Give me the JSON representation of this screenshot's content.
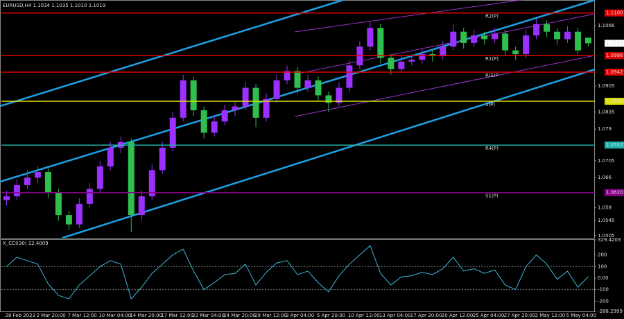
{
  "chart_data": [
    {
      "type": "candlestick",
      "title": "EURUSD,H4  1.1034 1.1035 1.1010 1.1019",
      "categories": [
        "28 Feb 2023",
        null,
        null,
        "2 Mar 20:00",
        null,
        null,
        "7 Mar 12:00",
        null,
        null,
        "10 Mar 04:00",
        null,
        null,
        "14 Mar 20:00",
        null,
        null,
        "17 Mar 12:00",
        null,
        null,
        "22 Mar 04:00",
        null,
        null,
        "24 Mar 20:00",
        null,
        null,
        "29 Mar 12:00",
        null,
        null,
        "3 Apr 04:00",
        null,
        null,
        "5 Apr 20:00",
        null,
        null,
        "10 Apr 12:00",
        null,
        null,
        "13 Apr 04:00",
        null,
        null,
        "17 Apr 20:00",
        null,
        null,
        "20 Apr 12:00",
        null,
        null,
        "25 Apr 04:00",
        null,
        null,
        "27 Apr 20:00",
        null,
        null,
        "2 May 12:00",
        null,
        null,
        "5 May 04:00",
        null,
        null
      ],
      "open": [
        1.06,
        1.061,
        1.064,
        1.066,
        1.0675,
        1.062,
        1.056,
        1.0535,
        1.059,
        1.063,
        1.069,
        1.074,
        1.0755,
        1.056,
        1.061,
        1.068,
        1.074,
        1.082,
        1.092,
        1.084,
        1.078,
        1.081,
        1.084,
        1.085,
        1.09,
        1.082,
        1.087,
        1.092,
        1.0945,
        1.09,
        1.092,
        1.088,
        1.086,
        1.09,
        1.096,
        1.101,
        1.106,
        1.098,
        1.095,
        1.097,
        1.0975,
        1.099,
        1.0985,
        1.101,
        1.105,
        1.102,
        1.104,
        1.103,
        1.1045,
        1.1,
        1.099,
        1.104,
        1.107,
        1.105,
        1.103,
        1.105,
        1.1034
      ],
      "high": [
        1.0625,
        1.0655,
        1.068,
        1.069,
        1.0685,
        1.063,
        1.057,
        1.0605,
        1.0645,
        1.0705,
        1.0755,
        1.077,
        1.0765,
        1.0625,
        1.0695,
        1.0755,
        1.0835,
        1.0935,
        1.093,
        1.085,
        1.0825,
        1.0855,
        1.0865,
        1.0915,
        1.091,
        1.0885,
        1.0935,
        1.096,
        1.0955,
        1.0935,
        1.093,
        1.089,
        1.0915,
        1.0975,
        1.1025,
        1.1075,
        1.107,
        1.099,
        1.0985,
        1.099,
        1.1005,
        1.1,
        1.1025,
        1.107,
        1.106,
        1.1055,
        1.105,
        1.106,
        1.1055,
        1.101,
        1.1055,
        1.1085,
        1.108,
        1.106,
        1.1065,
        1.106,
        1.1035
      ],
      "low": [
        1.0585,
        1.06,
        1.063,
        1.0645,
        1.0605,
        1.0545,
        1.052,
        1.0525,
        1.058,
        1.062,
        1.068,
        1.0725,
        1.0515,
        1.0545,
        1.06,
        1.067,
        1.073,
        1.081,
        1.0825,
        1.0765,
        1.077,
        1.08,
        1.0825,
        1.084,
        1.0795,
        1.081,
        1.086,
        1.091,
        1.0885,
        1.089,
        1.0865,
        1.0835,
        1.085,
        1.089,
        1.095,
        1.1,
        1.0965,
        1.0935,
        1.094,
        1.096,
        1.0965,
        1.097,
        1.0975,
        1.1,
        1.1005,
        1.101,
        1.1015,
        1.102,
        1.0985,
        1.0975,
        1.098,
        1.103,
        1.1035,
        1.1015,
        1.102,
        1.099,
        1.101
      ],
      "close": [
        1.061,
        1.064,
        1.066,
        1.0675,
        1.062,
        1.056,
        1.0535,
        1.059,
        1.063,
        1.069,
        1.074,
        1.0755,
        1.056,
        1.061,
        1.068,
        1.074,
        1.082,
        1.092,
        1.084,
        1.078,
        1.081,
        1.084,
        1.085,
        1.09,
        1.082,
        1.087,
        1.092,
        1.0945,
        1.09,
        1.092,
        1.088,
        1.086,
        1.09,
        1.096,
        1.101,
        1.106,
        1.098,
        1.095,
        1.097,
        1.0975,
        1.099,
        1.0985,
        1.101,
        1.105,
        1.102,
        1.104,
        1.103,
        1.1045,
        1.1,
        1.099,
        1.104,
        1.107,
        1.105,
        1.103,
        1.105,
        1.1,
        1.1019
      ],
      "up_color": "#9b30ff",
      "down_color": "#2fbf4f",
      "ylim": [
        1.0499,
        1.1131
      ],
      "yticks": [
        1.1066,
        1.0905,
        1.0835,
        1.079,
        1.0705,
        1.066,
        1.058,
        1.0545,
        1.0505
      ],
      "levels": [
        {
          "value": 1.11,
          "label": "1.1100",
          "tag": "R2(P)",
          "color": "#e00000"
        },
        {
          "value": 1.0986,
          "label": "1.0986",
          "tag": "R1(P)",
          "color": "#e00000"
        },
        {
          "value": 1.0942,
          "label": "1.0942",
          "tag": "R(S)P",
          "color": "#e00000"
        },
        {
          "value": 1.0864,
          "label": "1.0864",
          "tag": "1(P)",
          "color": "#e0e000"
        },
        {
          "value": 1.0747,
          "label": "1.0747",
          "tag": "R4(P)",
          "color": "#20b2aa"
        },
        {
          "value": 1.062,
          "label": "1.0620",
          "tag": "S1(P)",
          "color": "#8b008b"
        }
      ]
    },
    {
      "type": "line",
      "title": "X_CCI(30) 12.4009",
      "color": "#3fb8d8",
      "values": [
        100,
        180,
        150,
        120,
        -50,
        -150,
        -180,
        -60,
        20,
        100,
        150,
        120,
        -180,
        -80,
        40,
        120,
        200,
        250,
        60,
        -100,
        -40,
        30,
        40,
        120,
        -60,
        50,
        130,
        150,
        30,
        60,
        -40,
        -120,
        20,
        120,
        200,
        280,
        40,
        -60,
        10,
        20,
        50,
        30,
        80,
        180,
        60,
        80,
        40,
        70,
        -60,
        -100,
        100,
        200,
        120,
        -10,
        60,
        -80,
        12.4009
      ],
      "ylim": [
        -288.2999,
        329.4203
      ],
      "yticks": [
        329.4203,
        200,
        100,
        {
          "value": 0,
          "label": "0.00"
        },
        -100,
        -200,
        -288.2999
      ],
      "levels": [
        100,
        -100
      ]
    }
  ]
}
